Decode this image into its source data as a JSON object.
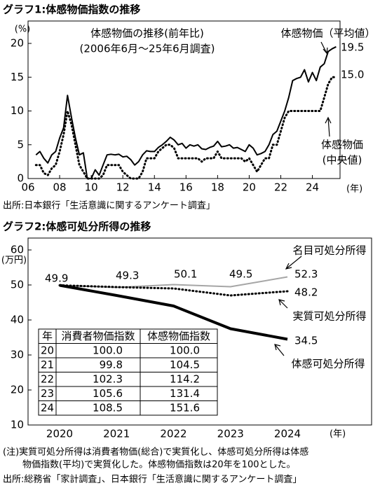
{
  "chart_data": [
    {
      "type": "line",
      "title": "グラフ1:体感物価指数の推移",
      "subtitle": [
        "体感物価の推移(前年比)",
        "(2006年6月～25年6月調査)"
      ],
      "y_label": "(%)",
      "x_label": "(年)",
      "source": "出所:日本銀行「生活意識に関するアンケート調査」",
      "x": [
        2006.5,
        2006.75,
        2007,
        2007.25,
        2007.5,
        2007.75,
        2008,
        2008.25,
        2008.5,
        2008.75,
        2009,
        2009.25,
        2009.5,
        2009.75,
        2010,
        2010.25,
        2010.5,
        2010.75,
        2011,
        2011.25,
        2011.5,
        2011.75,
        2012,
        2012.25,
        2012.5,
        2012.75,
        2013,
        2013.25,
        2013.5,
        2013.75,
        2014,
        2014.25,
        2014.5,
        2014.75,
        2015,
        2015.25,
        2015.5,
        2015.75,
        2016,
        2016.25,
        2016.5,
        2016.75,
        2017,
        2017.25,
        2017.5,
        2017.75,
        2018,
        2018.25,
        2018.5,
        2018.75,
        2019,
        2019.25,
        2019.5,
        2019.75,
        2020,
        2020.25,
        2020.5,
        2020.75,
        2021,
        2021.25,
        2021.5,
        2021.75,
        2022,
        2022.25,
        2022.5,
        2022.75,
        2023,
        2023.25,
        2023.5,
        2023.75,
        2024,
        2024.25,
        2024.5,
        2024.75,
        2025,
        2025.25,
        2025.5
      ],
      "series": [
        {
          "name": "体感物価（平均値）",
          "color": "#000000",
          "style": "solid",
          "end_label": "19.5",
          "values": [
            3.5,
            4.0,
            3.0,
            2.3,
            3.5,
            4.0,
            6.0,
            7.5,
            12.3,
            9.0,
            6.0,
            3.5,
            3.8,
            0.0,
            0.0,
            1.3,
            0.5,
            2.0,
            3.5,
            3.6,
            3.5,
            3.6,
            3.2,
            3.3,
            2.8,
            2.0,
            2.5,
            3.5,
            4.1,
            4.0,
            4.0,
            4.6,
            5.0,
            5.5,
            6.1,
            5.7,
            5.0,
            5.2,
            4.5,
            5.0,
            4.8,
            5.0,
            4.4,
            4.3,
            4.6,
            4.8,
            5.5,
            4.7,
            4.8,
            5.0,
            4.5,
            4.6,
            4.3,
            4.0,
            5.0,
            4.5,
            3.5,
            3.7,
            4.0,
            5.0,
            6.5,
            7.0,
            8.5,
            10.0,
            12.0,
            14.5,
            14.8,
            15.0,
            16.1,
            14.3,
            15.7,
            14.5,
            16.5,
            17.0,
            18.8,
            19.2,
            19.5
          ]
        },
        {
          "name": [
            "体感物価",
            "(中央値)"
          ],
          "color": "#000000",
          "style": "dotted",
          "end_label": "15.0",
          "values": [
            2.0,
            2.0,
            0.8,
            0.5,
            1.5,
            2.0,
            4.0,
            6.5,
            10.0,
            8.0,
            5.0,
            2.0,
            1.0,
            0.0,
            0.0,
            0.0,
            0.0,
            0.5,
            2.0,
            2.0,
            2.0,
            2.0,
            1.0,
            0.5,
            0.0,
            0.0,
            0.0,
            1.0,
            3.0,
            3.0,
            3.0,
            4.0,
            4.5,
            5.0,
            5.0,
            4.5,
            3.0,
            3.0,
            3.0,
            3.0,
            3.0,
            3.0,
            2.5,
            3.0,
            3.0,
            3.0,
            4.0,
            3.0,
            3.0,
            3.0,
            3.0,
            3.0,
            3.0,
            2.5,
            3.0,
            2.0,
            1.0,
            2.0,
            3.0,
            3.0,
            5.0,
            5.0,
            7.0,
            9.0,
            10.0,
            10.0,
            10.0,
            10.0,
            10.0,
            10.0,
            10.0,
            10.0,
            10.0,
            12.0,
            14.0,
            15.0,
            15.0
          ]
        }
      ],
      "xlim": [
        2006,
        2025.75
      ],
      "xticks": [
        {
          "value": 2006,
          "label": "06"
        },
        {
          "value": 2008,
          "label": "08"
        },
        {
          "value": 2010,
          "label": "10"
        },
        {
          "value": 2012,
          "label": "12"
        },
        {
          "value": 2014,
          "label": "14"
        },
        {
          "value": 2016,
          "label": "16"
        },
        {
          "value": 2018,
          "label": "18"
        },
        {
          "value": 2020,
          "label": "20"
        },
        {
          "value": 2022,
          "label": "22"
        },
        {
          "value": 2024,
          "label": "24"
        }
      ],
      "ylim": [
        0,
        20
      ],
      "yticks": [
        0,
        5,
        10,
        15,
        20
      ],
      "grid": false
    },
    {
      "type": "line",
      "title": "グラフ2:体感可処分所得の推移",
      "y_label": "(万円)",
      "x_label": "(年)",
      "categories": [
        "2020",
        "2021",
        "2022",
        "2023",
        "2024"
      ],
      "series": [
        {
          "name": "名目可処分所得",
          "color": "#a6a6a6",
          "style": "solid",
          "values": [
            49.9,
            49.3,
            50.1,
            49.5,
            52.3
          ]
        },
        {
          "name": "実質可処分所得",
          "color": "#000000",
          "style": "dotted",
          "values": [
            49.9,
            49.4,
            49.0,
            47.0,
            48.2
          ]
        },
        {
          "name": "体感可処分所得",
          "color": "#000000",
          "style": "thick",
          "values": [
            49.9,
            47.0,
            44.0,
            37.5,
            34.5
          ]
        }
      ],
      "ylim": [
        10,
        60
      ],
      "yticks": [
        10,
        20,
        30,
        40,
        50,
        60
      ],
      "grid": false,
      "table": {
        "header": [
          "年",
          "消費者物価指数",
          "体感物価指数"
        ],
        "rows": [
          [
            "20",
            "100.0",
            "100.0"
          ],
          [
            "21",
            "99.8",
            "104.5"
          ],
          [
            "22",
            "102.3",
            "114.2"
          ],
          [
            "23",
            "105.6",
            "131.4"
          ],
          [
            "24",
            "108.5",
            "151.6"
          ]
        ]
      }
    }
  ],
  "note": [
    "(注)実質可処分所得は消費者物価(総合)で実質化し、体感可処分所得は体感",
    "物価指数(平均)で実質化した。体感物価指数は20年を100とした。"
  ],
  "source": "出所:総務省「家計調査」、日本銀行「生活意識に関するアンケート調査」"
}
